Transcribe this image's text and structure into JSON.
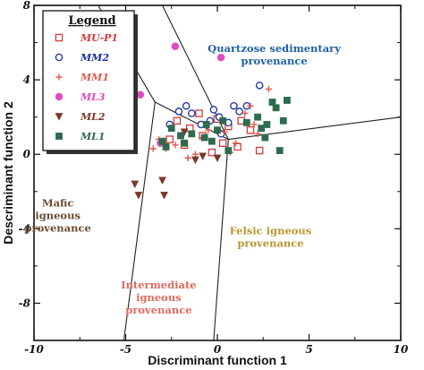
{
  "chart_data": {
    "type": "scatter",
    "xlabel": "Discriminant function 1",
    "ylabel": "Descriminant function 2",
    "xlim": [
      -10,
      10
    ],
    "ylim": [
      -10,
      8
    ],
    "xticks": [
      "-10",
      "-5",
      "0",
      "5",
      "10"
    ],
    "yticks": [
      "8",
      "4",
      "0",
      "-4",
      "-8"
    ],
    "xtick_values": [
      -10,
      -5,
      0,
      5,
      10
    ],
    "ytick_values": [
      8,
      4,
      0,
      -4,
      -8
    ],
    "legend": {
      "title": "Legend",
      "placement": "top-left"
    },
    "boundaries": [
      [
        [
          -6.5,
          8
        ],
        [
          -3.4,
          2.8
        ]
      ],
      [
        [
          -3.4,
          2.8
        ],
        [
          0.6,
          0.8
        ]
      ],
      [
        [
          0.6,
          0.8
        ],
        [
          10,
          2.0
        ]
      ],
      [
        [
          0.6,
          0.8
        ],
        [
          -3.0,
          8
        ]
      ],
      [
        [
          -3.4,
          2.8
        ],
        [
          -5.1,
          -10
        ]
      ],
      [
        [
          0.6,
          0.8
        ],
        [
          -0.2,
          -10
        ]
      ]
    ],
    "regions": [
      {
        "lines": [
          "Quartzose sedimentary",
          "provenance"
        ],
        "x": 3.1,
        "y": 5.5,
        "color": "#1f5fa8"
      },
      {
        "lines": [
          "Mafic",
          "igneous",
          "provenance"
        ],
        "x": -8.7,
        "y": -2.8,
        "color": "#6b4a2f"
      },
      {
        "lines": [
          "Felsic igneous",
          "provenance"
        ],
        "x": 2.9,
        "y": -4.3,
        "color": "#b8952e"
      },
      {
        "lines": [
          "Intermediate",
          "igneous",
          "provenance"
        ],
        "x": -3.2,
        "y": -7.2,
        "color": "#e06a5c"
      }
    ],
    "series": [
      {
        "name": "MU-P1",
        "marker": "square-open",
        "color": "#d83a3a",
        "points": [
          [
            -2.2,
            1.8
          ],
          [
            -1.5,
            1.4
          ],
          [
            -0.8,
            1.0
          ],
          [
            -0.3,
            0.1
          ],
          [
            0.3,
            0.6
          ],
          [
            1.1,
            0.4
          ],
          [
            1.8,
            1.3
          ],
          [
            2.3,
            0.2
          ],
          [
            -1.8,
            0.5
          ],
          [
            0.6,
            1.5
          ],
          [
            -2.6,
            0.8
          ],
          [
            0.0,
            1.9
          ],
          [
            1.3,
            1.8
          ],
          [
            -1.0,
            2.2
          ]
        ]
      },
      {
        "name": "MM2",
        "marker": "circle-open",
        "color": "#1a2fa0",
        "points": [
          [
            -2.6,
            1.6
          ],
          [
            -2.1,
            2.3
          ],
          [
            -1.4,
            2.2
          ],
          [
            -0.9,
            1.6
          ],
          [
            -0.4,
            1.8
          ],
          [
            0.1,
            2.0
          ],
          [
            0.6,
            1.7
          ],
          [
            1.2,
            2.3
          ],
          [
            1.6,
            2.6
          ],
          [
            2.3,
            3.7
          ],
          [
            -1.7,
            2.6
          ],
          [
            0.2,
            1.1
          ],
          [
            -0.2,
            2.4
          ],
          [
            0.9,
            2.6
          ]
        ]
      },
      {
        "name": "MM1",
        "marker": "plus",
        "color": "#e05a4a",
        "points": [
          [
            -3.2,
            0.8
          ],
          [
            -2.8,
            0.3
          ],
          [
            -2.3,
            0.5
          ],
          [
            -1.2,
            0.0
          ],
          [
            -0.8,
            0.9
          ],
          [
            0.4,
            1.2
          ],
          [
            1.0,
            0.6
          ],
          [
            1.5,
            2.2
          ],
          [
            2.2,
            1.1
          ],
          [
            2.8,
            3.5
          ],
          [
            1.8,
            2.6
          ],
          [
            -3.5,
            0.3
          ],
          [
            -1.6,
            -0.2
          ],
          [
            0.7,
            0.1
          ],
          [
            2.0,
            1.6
          ],
          [
            -0.5,
            1.3
          ]
        ]
      },
      {
        "name": "ML3",
        "marker": "circle-filled",
        "color": "#e04ac2",
        "points": [
          [
            -4.2,
            3.2
          ],
          [
            -2.3,
            5.8
          ],
          [
            0.2,
            5.2
          ],
          [
            -3.1,
            0.6
          ]
        ]
      },
      {
        "name": "ML2",
        "marker": "triangle-down",
        "color": "#7a3a2a",
        "points": [
          [
            -4.5,
            -1.6
          ],
          [
            -4.3,
            -2.2
          ],
          [
            -2.9,
            -2.2
          ],
          [
            -3.0,
            -1.4
          ],
          [
            -0.8,
            -0.1
          ],
          [
            0.0,
            -0.2
          ],
          [
            -1.8,
            1.2
          ],
          [
            -1.2,
            -0.3
          ]
        ]
      },
      {
        "name": "ML1",
        "marker": "square-filled",
        "color": "#2e6b4e",
        "points": [
          [
            -3.0,
            0.7
          ],
          [
            -2.5,
            1.4
          ],
          [
            -2.0,
            1.0
          ],
          [
            -1.4,
            1.1
          ],
          [
            -0.7,
            0.9
          ],
          [
            -0.3,
            0.7
          ],
          [
            0.0,
            1.3
          ],
          [
            0.3,
            1.8
          ],
          [
            1.6,
            1.7
          ],
          [
            2.2,
            2.0
          ],
          [
            2.7,
            1.6
          ],
          [
            3.2,
            2.5
          ],
          [
            3.6,
            1.8
          ],
          [
            3.0,
            2.8
          ],
          [
            2.4,
            1.4
          ],
          [
            3.8,
            2.9
          ],
          [
            3.4,
            0.2
          ],
          [
            2.6,
            0.9
          ],
          [
            0.6,
            0.2
          ],
          [
            -0.6,
            1.6
          ],
          [
            -1.8,
            0.6
          ],
          [
            -2.8,
            0.4
          ]
        ]
      }
    ]
  }
}
